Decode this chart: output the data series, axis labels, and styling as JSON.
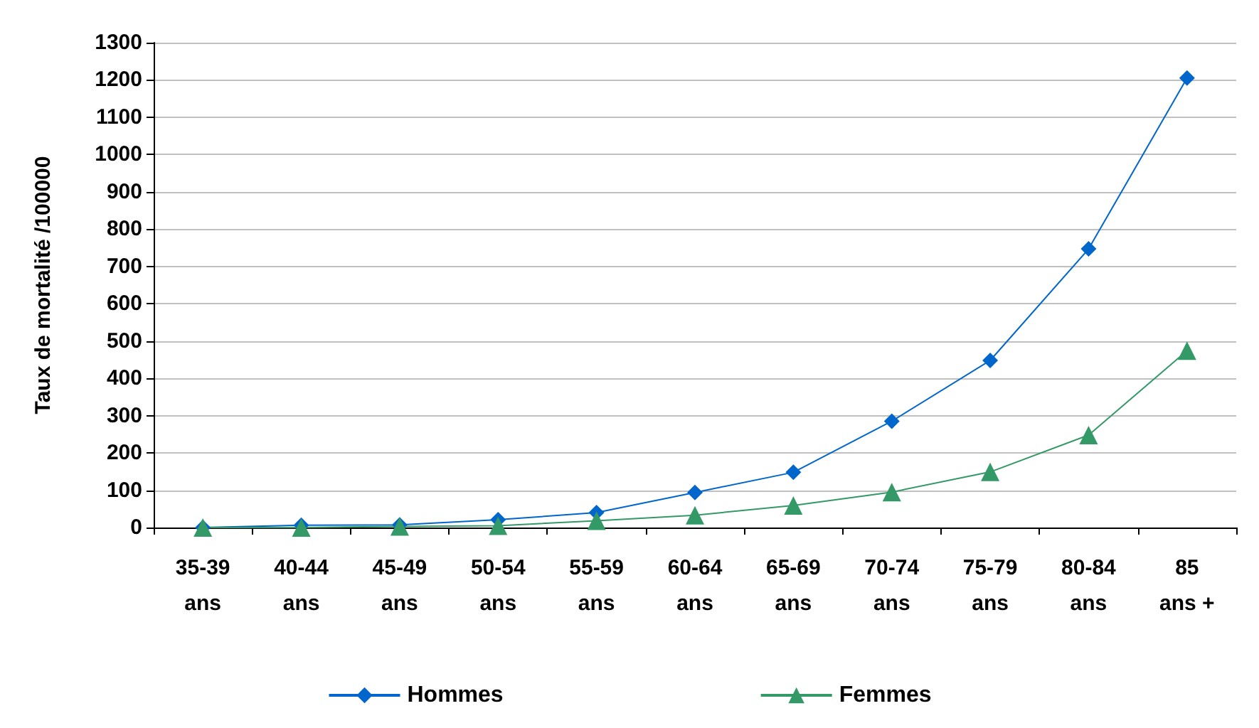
{
  "chart_data": {
    "type": "line",
    "ylabel": "Taux de mortalité /100000",
    "categories": [
      "35-39\nans",
      "40-44\nans",
      "45-49\nans",
      "50-54\nans",
      "55-59\nans",
      "60-64\nans",
      "65-69\nans",
      "70-74\nans",
      "75-79\nans",
      "80-84\nans",
      "85\nans +"
    ],
    "series": [
      {
        "name": "Hommes",
        "color": "#0066cc",
        "marker": "diamond",
        "values": [
          0,
          6,
          7,
          21,
          40,
          94,
          148,
          285,
          448,
          747,
          1205
        ]
      },
      {
        "name": "Femmes",
        "color": "#339966",
        "marker": "triangle",
        "values": [
          0,
          0,
          3,
          5,
          18,
          33,
          59,
          95,
          149,
          248,
          474
        ]
      }
    ],
    "ylim": [
      0,
      1300
    ],
    "yticks": [
      0,
      100,
      200,
      300,
      400,
      500,
      600,
      700,
      800,
      900,
      1000,
      1100,
      1200,
      1300
    ],
    "grid": "y",
    "legend": "bottom"
  }
}
